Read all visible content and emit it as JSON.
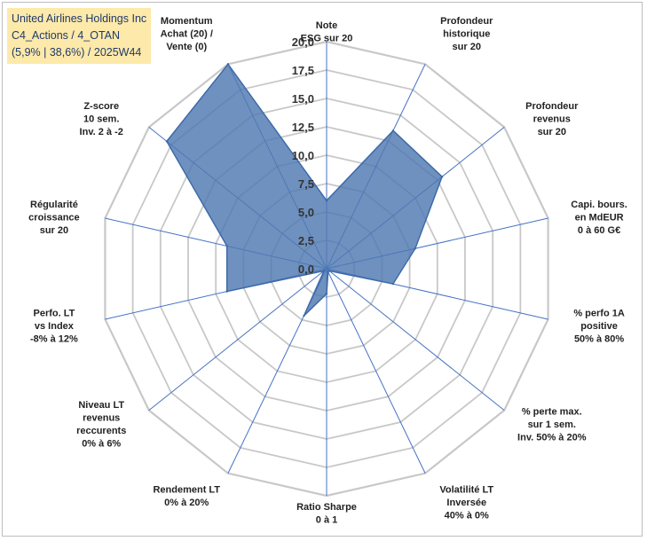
{
  "chart_data": {
    "type": "radar",
    "title_lines": [
      "United Airlines Holdings Inc",
      "C4_Actions / 4_OTAN",
      "(5,9% | 38,6%) / 2025W44"
    ],
    "r_min": 0,
    "r_max": 20,
    "r_ticks": [
      "0,0",
      "2,5",
      "5,0",
      "7,5",
      "10,0",
      "12,5",
      "15,0",
      "17,5",
      "20,0"
    ],
    "r_tick_values": [
      0,
      2.5,
      5,
      7.5,
      10,
      12.5,
      15,
      17.5,
      20
    ],
    "axes": [
      {
        "label": [
          "Note",
          "ESG sur 20"
        ]
      },
      {
        "label": [
          "Profondeur",
          "historique",
          "sur 20"
        ]
      },
      {
        "label": [
          "Profondeur",
          "revenus",
          "sur 20"
        ]
      },
      {
        "label": [
          "Capi. bours.",
          "en MdEUR",
          "0 à 60 G€"
        ]
      },
      {
        "label": [
          "% perfo 1A",
          "positive",
          "50% à 80%"
        ]
      },
      {
        "label": [
          "% perte max.",
          "sur 1 sem.",
          "Inv. 50% à 20%"
        ]
      },
      {
        "label": [
          "Volatilité LT",
          "Inversée",
          "40% à 0%"
        ]
      },
      {
        "label": [
          "Ratio Sharpe",
          "0 à 1"
        ]
      },
      {
        "label": [
          "Rendement LT",
          "0% à 20%"
        ]
      },
      {
        "label": [
          "Niveau LT",
          "revenus",
          "reccurents",
          "0% à 6%"
        ]
      },
      {
        "label": [
          "Perfo. LT",
          "vs Index",
          "-8% à 12%"
        ]
      },
      {
        "label": [
          "Régularité",
          "croissance",
          "sur 20"
        ]
      },
      {
        "label": [
          "Z-score",
          "10 sem.",
          "Inv. 2 à -2"
        ]
      },
      {
        "label": [
          "Momentum",
          "Achat (20) /",
          "Vente (0)"
        ]
      }
    ],
    "series": [
      {
        "name": "United Airlines Holdings Inc",
        "values": [
          6,
          13.5,
          13,
          8,
          6,
          0.3,
          0.3,
          2.2,
          4.6,
          0.3,
          9,
          9,
          18,
          20
        ]
      }
    ],
    "colors": {
      "fill": "#4f79b2",
      "stroke": "#3d6aa8",
      "grid": "#c8c8c8",
      "spoke": "#4472c4"
    }
  }
}
